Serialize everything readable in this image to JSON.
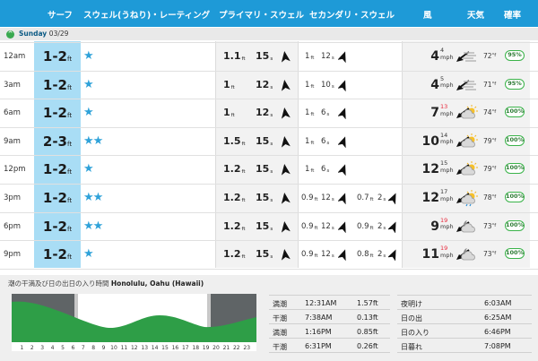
{
  "header": {
    "surf": "サーフ",
    "swell_rating": "スウェル(うねり)・レーティング",
    "primary_swell": "プライマリ・スウェル",
    "secondary_swell": "セカンダリ・スウェル",
    "wind": "風",
    "weather": "天気",
    "probability": "確率"
  },
  "day": {
    "toggle": "^",
    "name": "Sunday",
    "date": "03/29"
  },
  "units": {
    "ft": "ft",
    "s": "s",
    "mph": "mph",
    "deg": "°f"
  },
  "colors": {
    "header": "#1e9ad7",
    "surf_column": "#a9ddf5",
    "star": "#2fa2d9",
    "prob_border": "#3bb34a",
    "gust": "#e8283b",
    "tide_green": "#2e9e47"
  },
  "rows": [
    {
      "time": "12am",
      "surf": "1-2",
      "stars": "★",
      "p_height": "1.1",
      "p_period": "15",
      "s1_height": "1",
      "s1_period": "12",
      "s2_height": "",
      "s2_period": "",
      "wind_speed": "4",
      "wind_gust": "4",
      "gust_red": false,
      "weather_icon": "haze-icon",
      "temp": "72",
      "prob": "95%"
    },
    {
      "time": "3am",
      "surf": "1-2",
      "stars": "★",
      "p_height": "1",
      "p_period": "12",
      "s1_height": "1",
      "s1_period": "10",
      "s2_height": "",
      "s2_period": "",
      "wind_speed": "4",
      "wind_gust": "5",
      "gust_red": false,
      "weather_icon": "haze-icon",
      "temp": "71",
      "prob": "95%"
    },
    {
      "time": "6am",
      "surf": "1-2",
      "stars": "★",
      "p_height": "1",
      "p_period": "12",
      "s1_height": "1",
      "s1_period": "6",
      "s2_height": "",
      "s2_period": "",
      "wind_speed": "7",
      "wind_gust": "13",
      "gust_red": true,
      "weather_icon": "partly-cloudy-icon",
      "temp": "74",
      "prob": "100%"
    },
    {
      "time": "9am",
      "surf": "2-3",
      "stars": "★★",
      "p_height": "1.5",
      "p_period": "15",
      "s1_height": "1",
      "s1_period": "6",
      "s2_height": "",
      "s2_period": "",
      "wind_speed": "10",
      "wind_gust": "14",
      "gust_red": false,
      "weather_icon": "partly-cloudy-icon",
      "temp": "79",
      "prob": "100%"
    },
    {
      "time": "12pm",
      "surf": "1-2",
      "stars": "★",
      "p_height": "1.2",
      "p_period": "15",
      "s1_height": "1",
      "s1_period": "6",
      "s2_height": "",
      "s2_period": "",
      "wind_speed": "12",
      "wind_gust": "15",
      "gust_red": false,
      "weather_icon": "partly-cloudy-icon",
      "temp": "79",
      "prob": "100%"
    },
    {
      "time": "3pm",
      "surf": "1-2",
      "stars": "★★",
      "p_height": "1.2",
      "p_period": "15",
      "s1_height": "0.9",
      "s1_period": "12",
      "s2_height": "0.7",
      "s2_period": "2",
      "wind_speed": "12",
      "wind_gust": "17",
      "gust_red": false,
      "weather_icon": "partly-cloudy-rain-icon",
      "temp": "78",
      "prob": "100%"
    },
    {
      "time": "6pm",
      "surf": "1-2",
      "stars": "★★",
      "p_height": "1.2",
      "p_period": "15",
      "s1_height": "0.9",
      "s1_period": "12",
      "s2_height": "0.9",
      "s2_period": "2",
      "wind_speed": "9",
      "wind_gust": "19",
      "gust_red": true,
      "weather_icon": "night-cloudy-icon",
      "temp": "73",
      "prob": "100%"
    },
    {
      "time": "9pm",
      "surf": "1-2",
      "stars": "★",
      "p_height": "1.2",
      "p_period": "15",
      "s1_height": "0.9",
      "s1_period": "12",
      "s2_height": "0.8",
      "s2_period": "2",
      "wind_speed": "11",
      "wind_gust": "19",
      "gust_red": true,
      "weather_icon": "night-cloudy-icon",
      "temp": "73",
      "prob": "100%"
    }
  ],
  "tide": {
    "title": "潮の干満及び日の出日の入り時間",
    "location": "Honolulu, Oahu (Hawaii)",
    "hours": [
      "1",
      "2",
      "3",
      "4",
      "5",
      "6",
      "7",
      "8",
      "9",
      "10",
      "11",
      "12",
      "13",
      "14",
      "15",
      "16",
      "17",
      "18",
      "19",
      "20",
      "21",
      "22",
      "23"
    ],
    "table": [
      {
        "type": "満潮",
        "time": "12:31AM",
        "height": "1.57ft"
      },
      {
        "type": "干潮",
        "time": "7:38AM",
        "height": "0.13ft"
      },
      {
        "type": "満潮",
        "time": "1:16PM",
        "height": "0.85ft"
      },
      {
        "type": "干潮",
        "time": "6:31PM",
        "height": "0.26ft"
      }
    ],
    "sun": [
      {
        "label": "夜明け",
        "time": "6:03AM"
      },
      {
        "label": "日の出",
        "time": "6:25AM"
      },
      {
        "label": "日の入り",
        "time": "6:46PM"
      },
      {
        "label": "日暮れ",
        "time": "7:08PM"
      }
    ]
  }
}
